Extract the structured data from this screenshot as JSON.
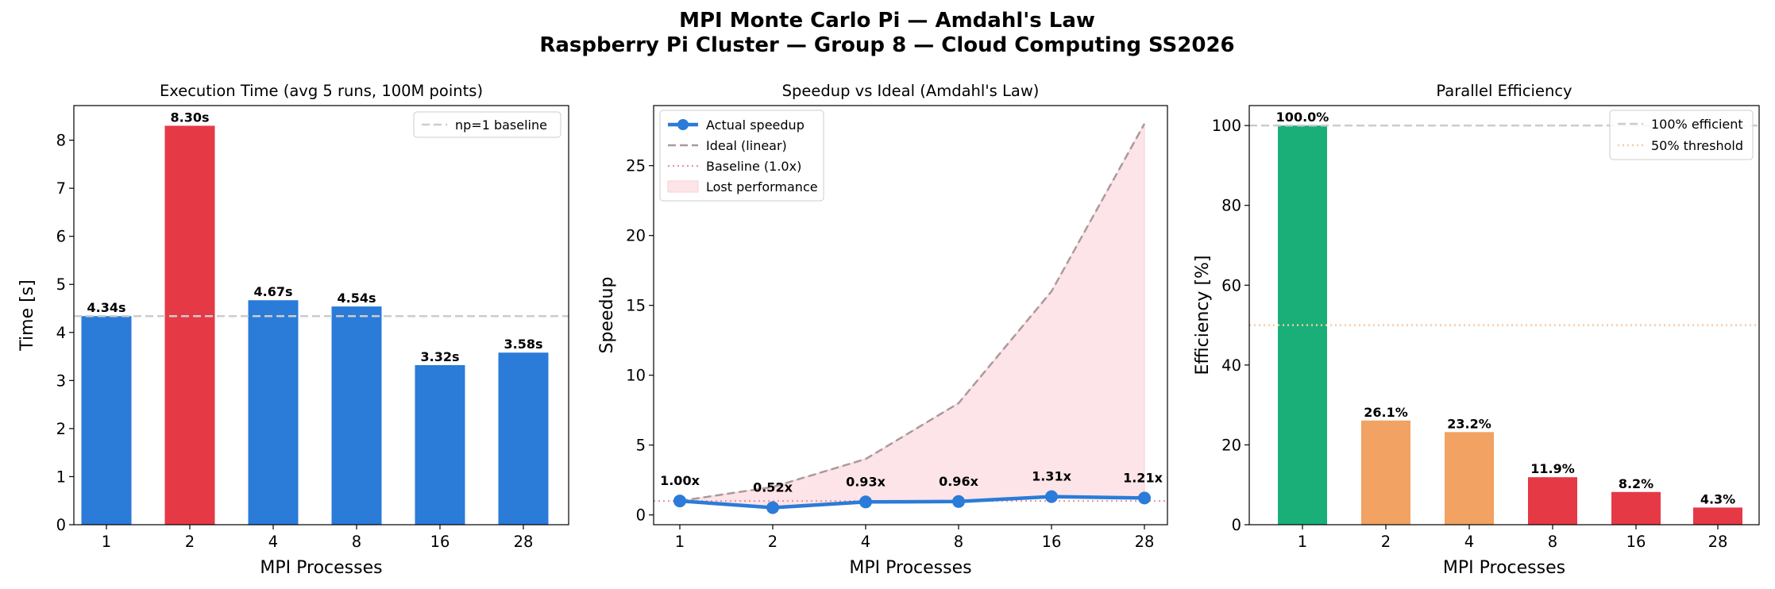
{
  "title_line1": "MPI Monte Carlo Pi — Amdahl's Law",
  "title_line2": "Raspberry Pi Cluster — Group 8 — Cloud Computing SS2026",
  "chart_data": [
    {
      "type": "bar",
      "title": "Execution Time (avg 5 runs, 100M points)",
      "xlabel": "MPI Processes",
      "ylabel": "Time [s]",
      "categories": [
        "1",
        "2",
        "4",
        "8",
        "16",
        "28"
      ],
      "values": [
        4.34,
        8.3,
        4.67,
        4.54,
        3.32,
        3.58
      ],
      "data_labels": [
        "4.34s",
        "8.30s",
        "4.67s",
        "4.54s",
        "3.32s",
        "3.58s"
      ],
      "bar_colors": [
        "#2b7bd8",
        "#e63946",
        "#2b7bd8",
        "#2b7bd8",
        "#2b7bd8",
        "#2b7bd8"
      ],
      "ylim": [
        0,
        8.72
      ],
      "yticks": [
        0,
        1,
        2,
        3,
        4,
        5,
        6,
        7,
        8
      ],
      "baseline": 4.34,
      "legend": [
        {
          "name": "np=1 baseline",
          "color": "#cccccc",
          "style": "dashed"
        }
      ],
      "legend_position": "top-right",
      "grid": false
    },
    {
      "type": "line",
      "title": "Speedup vs Ideal (Amdahl's Law)",
      "xlabel": "MPI Processes",
      "ylabel": "Speedup",
      "categories": [
        "1",
        "2",
        "4",
        "8",
        "16",
        "28"
      ],
      "series": [
        {
          "name": "Actual speedup",
          "values": [
            1.0,
            0.52,
            0.93,
            0.96,
            1.31,
            1.21
          ],
          "color": "#2b7bd8",
          "style": "solid-marker"
        },
        {
          "name": "Ideal (linear)",
          "values": [
            1,
            2,
            4,
            8,
            16,
            28
          ],
          "color": "#aa9a9a",
          "style": "dashed"
        }
      ],
      "data_labels": [
        "1.00x",
        "0.52x",
        "0.93x",
        "0.96x",
        "1.31x",
        "1.21x"
      ],
      "baseline": 1.0,
      "legend": [
        {
          "name": "Actual speedup",
          "color": "#2b7bd8",
          "style": "solid-marker"
        },
        {
          "name": "Ideal (linear)",
          "color": "#aa9a9a",
          "style": "dashed"
        },
        {
          "name": "Baseline (1.0x)",
          "color": "#e8909a",
          "style": "dotted"
        },
        {
          "name": "Lost performance",
          "color": "#fce4e8",
          "style": "fill"
        }
      ],
      "legend_position": "top-left",
      "ylim": [
        -0.7,
        29.3
      ],
      "yticks": [
        0,
        5,
        10,
        15,
        20,
        25
      ],
      "grid": false
    },
    {
      "type": "bar",
      "title": "Parallel Efficiency",
      "xlabel": "MPI Processes",
      "ylabel": "Efficiency [%]",
      "categories": [
        "1",
        "2",
        "4",
        "8",
        "16",
        "28"
      ],
      "values": [
        100.0,
        26.1,
        23.2,
        11.9,
        8.2,
        4.3
      ],
      "data_labels": [
        "100.0%",
        "26.1%",
        "23.2%",
        "11.9%",
        "8.2%",
        "4.3%"
      ],
      "bar_colors": [
        "#1aaf78",
        "#f2a262",
        "#f2a262",
        "#e63946",
        "#e63946",
        "#e63946"
      ],
      "ylim": [
        0,
        105
      ],
      "yticks": [
        0,
        20,
        40,
        60,
        80,
        100
      ],
      "reference_lines": [
        {
          "name": "100% efficient",
          "value": 100,
          "color": "#cccccc",
          "style": "dashed"
        },
        {
          "name": "50% threshold",
          "value": 50,
          "color": "#f5c9a5",
          "style": "dotted"
        }
      ],
      "legend_position": "top-right",
      "grid": false
    }
  ]
}
